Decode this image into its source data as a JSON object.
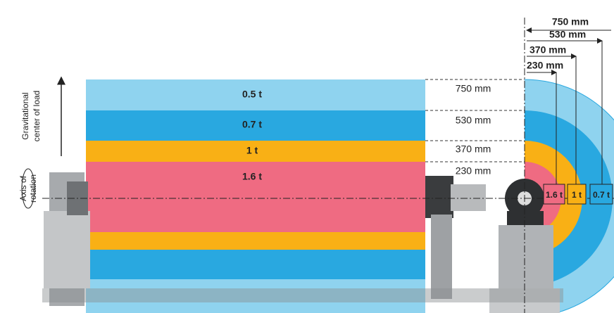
{
  "top_dimensions": [
    "750 mm",
    "530 mm",
    "370 mm",
    "230 mm"
  ],
  "bands": [
    {
      "load": "0.5 t",
      "height_label": "750 mm"
    },
    {
      "load": "0.7 t",
      "height_label": "530 mm"
    },
    {
      "load": "1 t",
      "height_label": "370 mm"
    },
    {
      "load": "1.6 t",
      "height_label": "230 mm"
    }
  ],
  "hanger_labels": [
    "1.6 t",
    "1 t",
    "0.7 t"
  ],
  "side_labels": {
    "load_center": [
      "Gravitational",
      "center of load"
    ],
    "axis": [
      "Axis of",
      "rotation"
    ]
  }
}
